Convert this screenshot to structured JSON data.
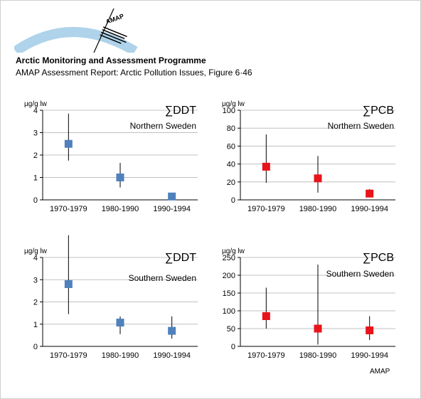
{
  "header": {
    "title": "Arctic Monitoring and Assessment Programme",
    "subtitle": "AMAP Assessment Report: Arctic Pollution Issues, Figure 6·46",
    "logo_text": "AMAP"
  },
  "footer": {
    "credit": "AMAP"
  },
  "colors": {
    "ddt_marker": "#4f81bd",
    "pcb_marker": "#e8131b",
    "whisker": "#000000",
    "grid": "#c0c0c0",
    "logo_arc": "#aed3ea"
  },
  "chart_data": [
    {
      "type": "scatter",
      "title": "∑DDT",
      "region": "Northern Sweden",
      "ylabel": "µg/g lw",
      "categories": [
        "1970-1979",
        "1980-1990",
        "1990-1994"
      ],
      "yticks": [
        "0",
        "1",
        "2",
        "3",
        "4"
      ],
      "ylim": [
        0,
        4
      ],
      "series": [
        {
          "values": [
            2.5,
            1.0,
            0.15
          ],
          "low": [
            1.75,
            0.55,
            null
          ],
          "high": [
            3.85,
            1.65,
            null
          ]
        }
      ],
      "marker_color": "#4f81bd"
    },
    {
      "type": "scatter",
      "title": "∑PCB",
      "region": "Northern Sweden",
      "ylabel": "µg/g lw",
      "categories": [
        "1970-1979",
        "1980-1990",
        "1990-1994"
      ],
      "yticks": [
        "0",
        "20",
        "40",
        "60",
        "80",
        "100"
      ],
      "ylim": [
        0,
        100
      ],
      "series": [
        {
          "values": [
            37,
            24,
            7
          ],
          "low": [
            19,
            8,
            3
          ],
          "high": [
            73,
            49,
            12
          ]
        }
      ],
      "marker_color": "#e8131b"
    },
    {
      "type": "scatter",
      "title": "∑DDT",
      "region": "Southern Sweden",
      "ylabel": "µg/g lw",
      "categories": [
        "1970-1979",
        "1980-1990",
        "1990-1994"
      ],
      "yticks": [
        "0",
        "1",
        "2",
        "3",
        "4"
      ],
      "ylim": [
        0,
        4
      ],
      "series": [
        {
          "values": [
            2.8,
            1.07,
            0.7
          ],
          "low": [
            1.45,
            0.55,
            0.35
          ],
          "high": [
            5.0,
            1.35,
            1.35
          ]
        }
      ],
      "marker_color": "#4f81bd"
    },
    {
      "type": "scatter",
      "title": "∑PCB",
      "region": "Southern Sweden",
      "ylabel": "µg/g lw",
      "categories": [
        "1970-1979",
        "1980-1990",
        "1990-1994"
      ],
      "yticks": [
        "0",
        "50",
        "100",
        "150",
        "200",
        "250"
      ],
      "ylim": [
        0,
        250
      ],
      "series": [
        {
          "values": [
            85,
            50,
            45
          ],
          "low": [
            50,
            5,
            18
          ],
          "high": [
            165,
            230,
            85
          ]
        }
      ],
      "marker_color": "#e8131b"
    }
  ]
}
